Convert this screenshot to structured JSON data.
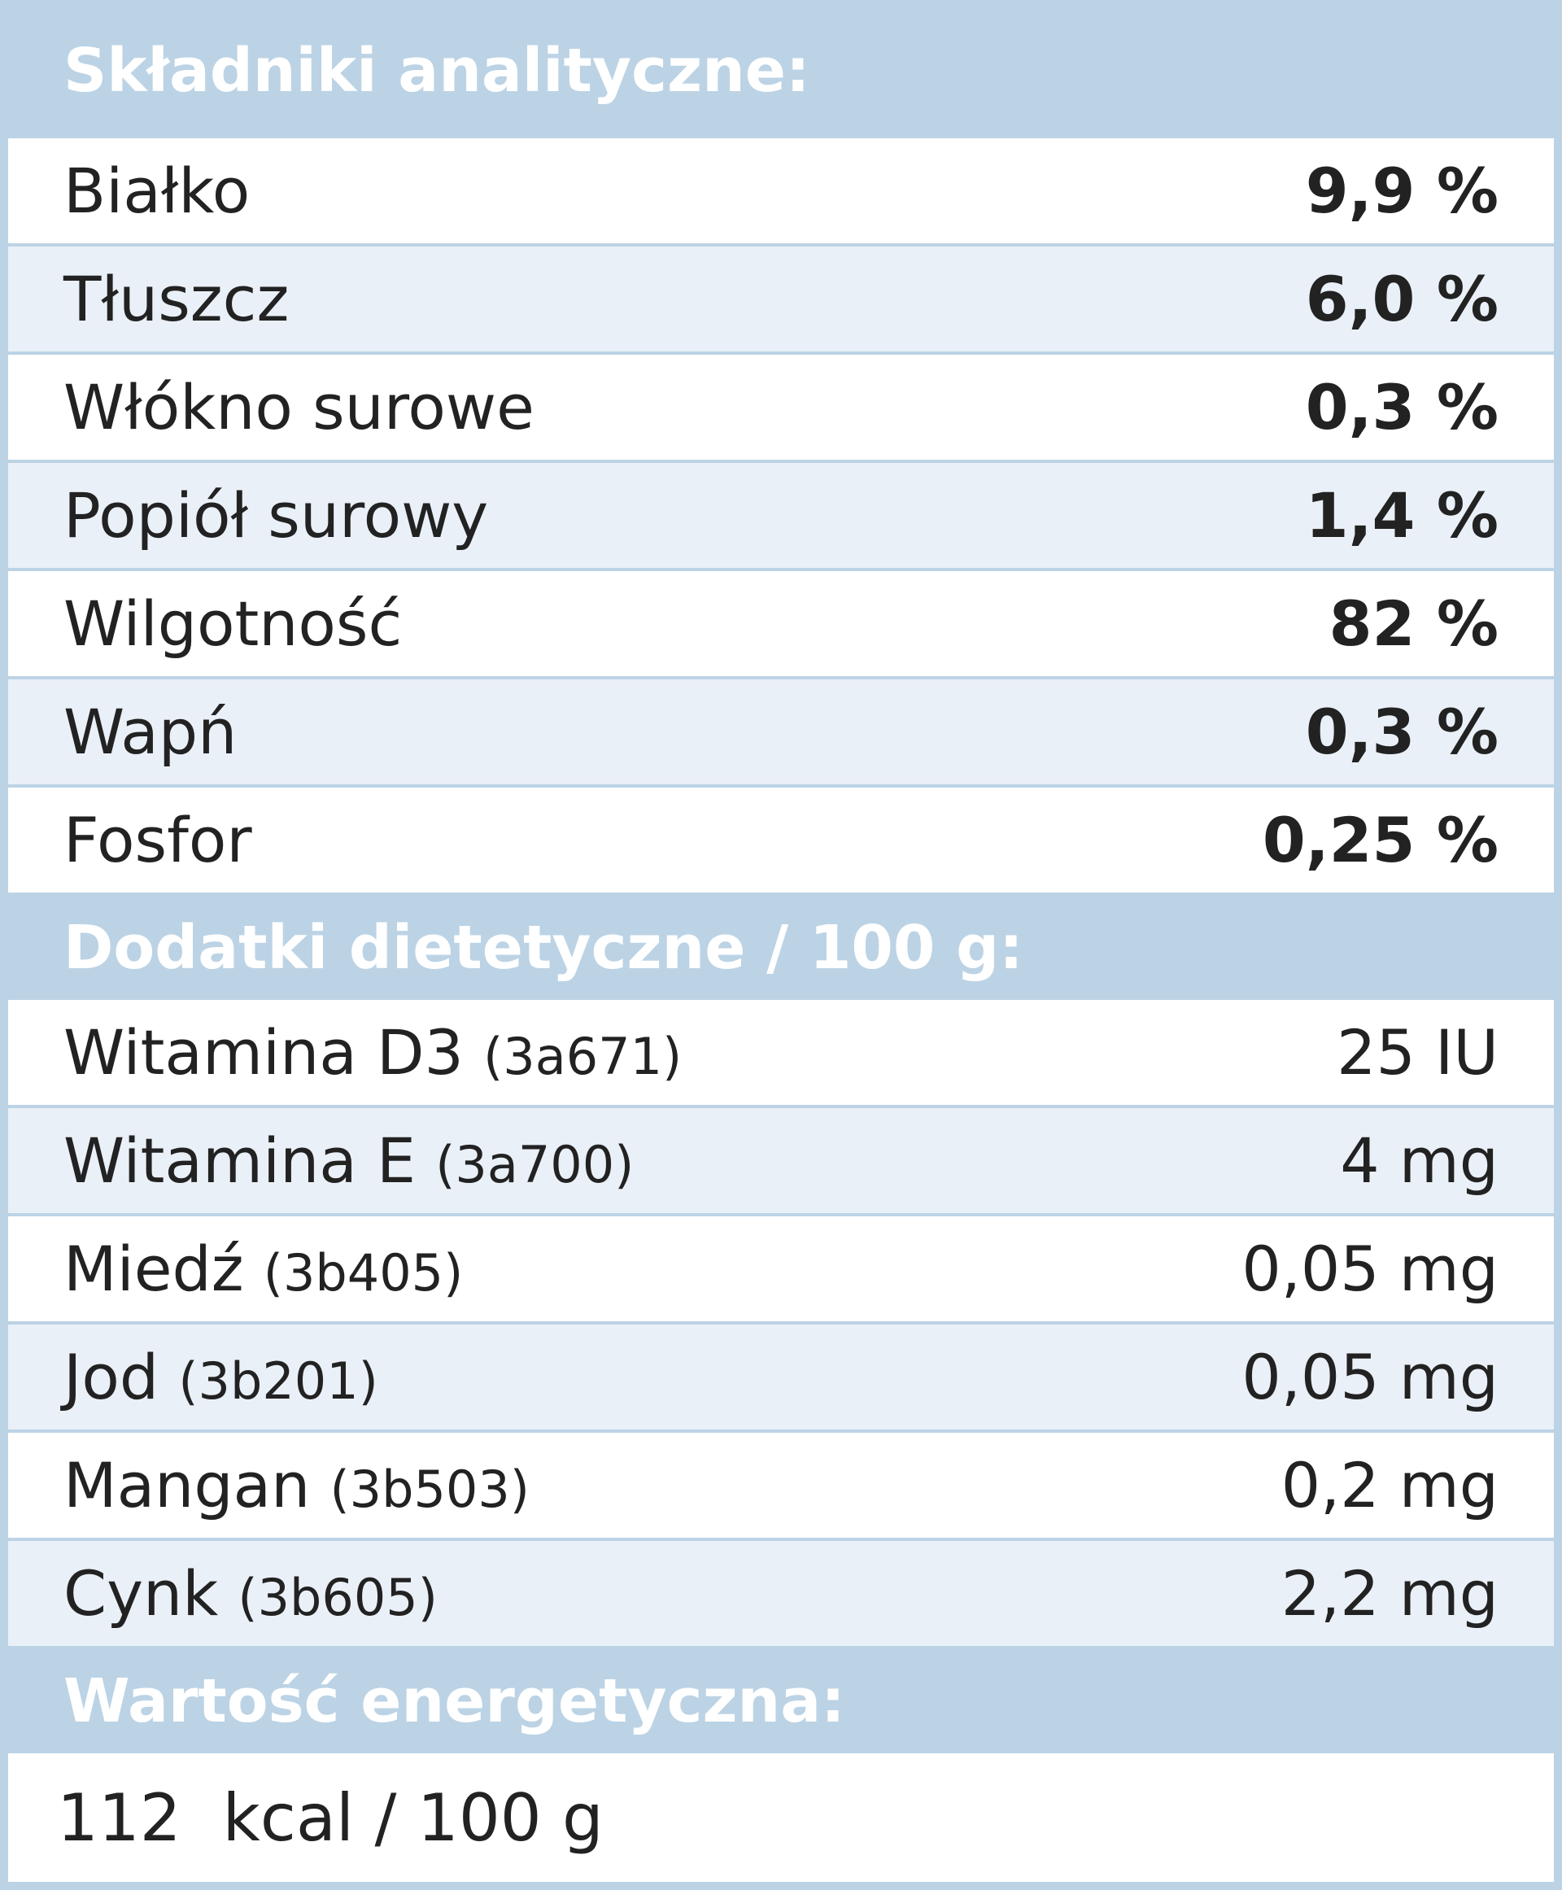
{
  "sections": [
    {
      "title": "Składniki analityczne:",
      "rows": [
        {
          "name": "Białko",
          "value": "9,9 %"
        },
        {
          "name": "Tłuszcz",
          "value": "6,0 %"
        },
        {
          "name": "Włókno surowe",
          "value": "0,3 %"
        },
        {
          "name": "Popiół surowy",
          "value": "1,4 %"
        },
        {
          "name": "Wilgotność",
          "value": "82 %"
        },
        {
          "name": "Wapń",
          "value": "0,3 %"
        },
        {
          "name": "Fosfor",
          "value": "0,25 %"
        }
      ]
    },
    {
      "title": "Dodatki dietetyczne / 100 g:",
      "rows": [
        {
          "name": "Witamina D3",
          "code": "(3a671)",
          "value": "25 IU"
        },
        {
          "name": "Witamina E",
          "code": "(3a700)",
          "value": "4 mg"
        },
        {
          "name": "Miedź",
          "code": "(3b405)",
          "value": "0,05 mg"
        },
        {
          "name": "Jod",
          "code": "(3b201)",
          "value": "0,05 mg"
        },
        {
          "name": "Mangan",
          "code": "(3b503)",
          "value": "0,2 mg"
        },
        {
          "name": "Cynk",
          "code": "(3b605)",
          "value": "2,2 mg"
        }
      ]
    },
    {
      "title": "Wartość energetyczna:",
      "text": "112  kcal / 100 g"
    }
  ]
}
